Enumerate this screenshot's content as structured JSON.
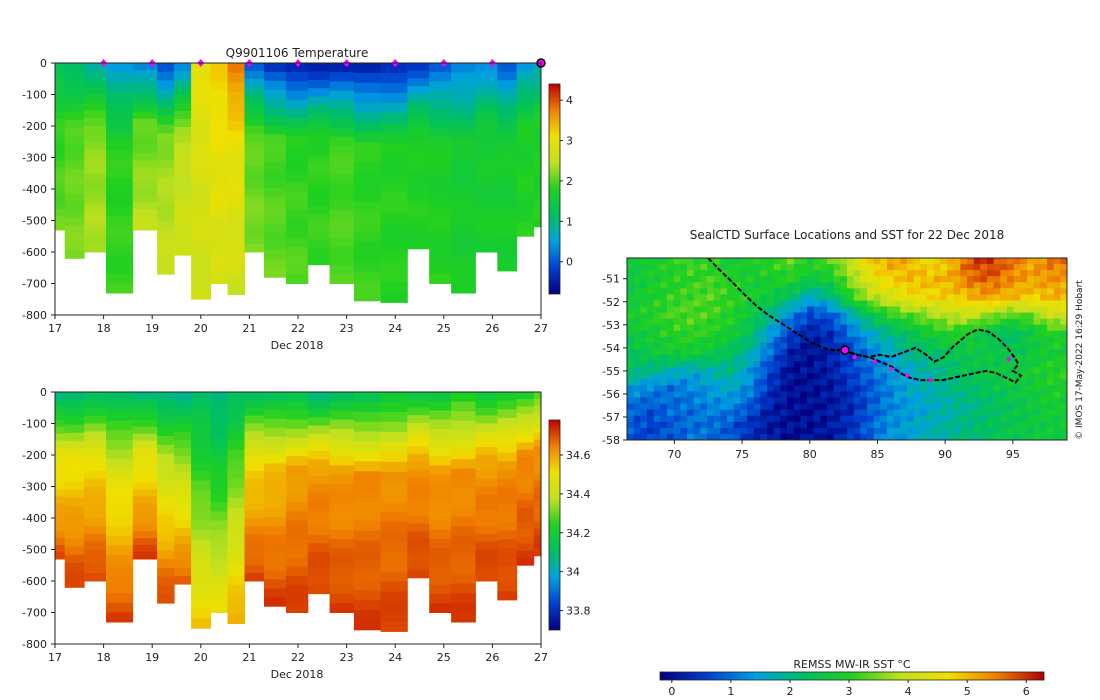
{
  "colors": {
    "temperature_cmap": [
      "#00007f",
      "#0040d0",
      "#00a0e0",
      "#00c060",
      "#20d020",
      "#c0e020",
      "#f0e000",
      "#f08000",
      "#c00000"
    ],
    "salinity_cmap": [
      "#00007f",
      "#0040d0",
      "#00a0e0",
      "#00c060",
      "#20d020",
      "#c0e020",
      "#f0e000",
      "#f08000",
      "#c00000"
    ],
    "sst_cmap": [
      "#00007f",
      "#0040d0",
      "#00a0e0",
      "#00c060",
      "#20d020",
      "#c0e020",
      "#f0e000",
      "#f08000",
      "#b00000"
    ],
    "marker": "#ff00ff",
    "track": "#000000",
    "profile_fill_temp": "#20c030",
    "profile_fill_sal_deep": "#b00000"
  },
  "chart_data": [
    {
      "id": "temperature-section",
      "type": "heatmap",
      "title": "Q9901106  Temperature",
      "xlabel": "Dec 2018",
      "ylabel": "",
      "x_ticks": [
        "17",
        "18",
        "19",
        "20",
        "21",
        "22",
        "23",
        "24",
        "25",
        "26",
        "27"
      ],
      "xlim": [
        17,
        27
      ],
      "y_ticks": [
        "0",
        "-100",
        "-200",
        "-300",
        "-400",
        "-500",
        "-600",
        "-700",
        "-800"
      ],
      "ylim": [
        -800,
        0
      ],
      "colorbar_ticks": [
        "0",
        "1",
        "2",
        "3",
        "4"
      ],
      "colorbar_range": [
        -0.8,
        4.4
      ],
      "surface_markers_x": [
        18,
        19,
        20,
        21,
        22,
        23,
        24,
        25,
        26
      ],
      "last_marker_x": 27,
      "profiles": [
        {
          "x": 17.0,
          "depth": 530,
          "surface": 1.2,
          "mid": 1.8,
          "deep": 2.1
        },
        {
          "x": 17.4,
          "depth": 620,
          "surface": 1.0,
          "mid": 2.0,
          "deep": 2.2
        },
        {
          "x": 17.8,
          "depth": 600,
          "surface": 0.8,
          "mid": 2.2,
          "deep": 2.4
        },
        {
          "x": 18.3,
          "depth": 730,
          "surface": 0.5,
          "mid": 1.8,
          "deep": 1.9
        },
        {
          "x": 18.9,
          "depth": 530,
          "surface": 0.2,
          "mid": 2.0,
          "deep": 2.5
        },
        {
          "x": 19.3,
          "depth": 670,
          "surface": -0.2,
          "mid": 2.2,
          "deep": 2.6
        },
        {
          "x": 19.6,
          "depth": 610,
          "surface": 0.3,
          "mid": 2.4,
          "deep": 2.7
        },
        {
          "x": 20.0,
          "depth": 750,
          "surface": 3.0,
          "mid": 2.8,
          "deep": 2.6
        },
        {
          "x": 20.4,
          "depth": 700,
          "surface": 3.2,
          "mid": 3.0,
          "deep": 2.7
        },
        {
          "x": 20.7,
          "depth": 735,
          "surface": 3.8,
          "mid": 3.0,
          "deep": 2.6
        },
        {
          "x": 21.1,
          "depth": 600,
          "surface": 0.0,
          "mid": 2.0,
          "deep": 2.2
        },
        {
          "x": 21.5,
          "depth": 680,
          "surface": -0.4,
          "mid": 1.9,
          "deep": 2.1
        },
        {
          "x": 22.0,
          "depth": 700,
          "surface": -0.6,
          "mid": 1.8,
          "deep": 2.0
        },
        {
          "x": 22.4,
          "depth": 640,
          "surface": -0.6,
          "mid": 1.8,
          "deep": 1.9
        },
        {
          "x": 22.9,
          "depth": 700,
          "surface": -0.5,
          "mid": 1.9,
          "deep": 2.0
        },
        {
          "x": 23.4,
          "depth": 755,
          "surface": -0.6,
          "mid": 1.8,
          "deep": 1.9
        },
        {
          "x": 24.0,
          "depth": 760,
          "surface": -0.5,
          "mid": 1.8,
          "deep": 1.8
        },
        {
          "x": 24.5,
          "depth": 590,
          "surface": -0.3,
          "mid": 1.7,
          "deep": 1.8
        },
        {
          "x": 24.9,
          "depth": 700,
          "surface": 0.0,
          "mid": 1.7,
          "deep": 1.8
        },
        {
          "x": 25.4,
          "depth": 730,
          "surface": 0.2,
          "mid": 1.6,
          "deep": 1.7
        },
        {
          "x": 25.9,
          "depth": 600,
          "surface": 0.3,
          "mid": 1.6,
          "deep": 1.7
        },
        {
          "x": 26.3,
          "depth": 660,
          "surface": 0.0,
          "mid": 1.6,
          "deep": 1.7
        },
        {
          "x": 26.7,
          "depth": 550,
          "surface": 0.4,
          "mid": 1.7,
          "deep": 1.8
        },
        {
          "x": 27.0,
          "depth": 520,
          "surface": 0.6,
          "mid": 1.7,
          "deep": 1.8
        }
      ]
    },
    {
      "id": "salinity-section",
      "type": "heatmap",
      "title": "",
      "xlabel": "Dec 2018",
      "ylabel": "",
      "x_ticks": [
        "17",
        "18",
        "19",
        "20",
        "21",
        "22",
        "23",
        "24",
        "25",
        "26",
        "27"
      ],
      "xlim": [
        17,
        27
      ],
      "y_ticks": [
        "0",
        "-100",
        "-200",
        "-300",
        "-400",
        "-500",
        "-600",
        "-700",
        "-800"
      ],
      "ylim": [
        -800,
        0
      ],
      "colorbar_ticks": [
        "33.8",
        "34",
        "34.2",
        "34.4",
        "34.6"
      ],
      "colorbar_range": [
        33.7,
        34.78
      ],
      "profiles": [
        {
          "x": 17.0,
          "depth": 530,
          "surface": 34.05,
          "mid": 34.45,
          "deep": 34.7
        },
        {
          "x": 17.4,
          "depth": 620,
          "surface": 34.05,
          "mid": 34.5,
          "deep": 34.72
        },
        {
          "x": 17.8,
          "depth": 600,
          "surface": 34.1,
          "mid": 34.5,
          "deep": 34.72
        },
        {
          "x": 18.3,
          "depth": 730,
          "surface": 34.1,
          "mid": 34.45,
          "deep": 34.72
        },
        {
          "x": 18.9,
          "depth": 530,
          "surface": 34.05,
          "mid": 34.45,
          "deep": 34.72
        },
        {
          "x": 19.3,
          "depth": 670,
          "surface": 34.05,
          "mid": 34.4,
          "deep": 34.72
        },
        {
          "x": 19.6,
          "depth": 610,
          "surface": 34.05,
          "mid": 34.35,
          "deep": 34.7
        },
        {
          "x": 20.0,
          "depth": 750,
          "surface": 34.1,
          "mid": 34.25,
          "deep": 34.55
        },
        {
          "x": 20.4,
          "depth": 700,
          "surface": 34.05,
          "mid": 34.2,
          "deep": 34.5
        },
        {
          "x": 20.7,
          "depth": 735,
          "surface": 34.1,
          "mid": 34.3,
          "deep": 34.6
        },
        {
          "x": 21.1,
          "depth": 600,
          "surface": 34.1,
          "mid": 34.5,
          "deep": 34.72
        },
        {
          "x": 21.5,
          "depth": 680,
          "surface": 34.1,
          "mid": 34.55,
          "deep": 34.72
        },
        {
          "x": 22.0,
          "depth": 700,
          "surface": 34.1,
          "mid": 34.6,
          "deep": 34.72
        },
        {
          "x": 22.4,
          "depth": 640,
          "surface": 34.05,
          "mid": 34.6,
          "deep": 34.72
        },
        {
          "x": 22.9,
          "depth": 700,
          "surface": 34.1,
          "mid": 34.6,
          "deep": 34.72
        },
        {
          "x": 23.4,
          "depth": 755,
          "surface": 34.1,
          "mid": 34.62,
          "deep": 34.72
        },
        {
          "x": 24.0,
          "depth": 760,
          "surface": 34.15,
          "mid": 34.62,
          "deep": 34.72
        },
        {
          "x": 24.5,
          "depth": 590,
          "surface": 34.15,
          "mid": 34.6,
          "deep": 34.72
        },
        {
          "x": 24.9,
          "depth": 700,
          "surface": 34.15,
          "mid": 34.6,
          "deep": 34.72
        },
        {
          "x": 25.4,
          "depth": 730,
          "surface": 34.2,
          "mid": 34.62,
          "deep": 34.72
        },
        {
          "x": 25.9,
          "depth": 600,
          "surface": 34.15,
          "mid": 34.6,
          "deep": 34.72
        },
        {
          "x": 26.3,
          "depth": 660,
          "surface": 34.2,
          "mid": 34.62,
          "deep": 34.72
        },
        {
          "x": 26.7,
          "depth": 550,
          "surface": 34.2,
          "mid": 34.62,
          "deep": 34.72
        },
        {
          "x": 27.0,
          "depth": 520,
          "surface": 34.25,
          "mid": 34.62,
          "deep": 34.72
        }
      ]
    },
    {
      "id": "sst-map",
      "type": "heatmap",
      "title": "SealCTD Surface Locations and SST for 22 Dec 2018",
      "xlabel": "",
      "ylabel": "",
      "x_ticks": [
        "70",
        "75",
        "80",
        "85",
        "90",
        "95"
      ],
      "xlim": [
        66.5,
        99
      ],
      "y_ticks": [
        "-51",
        "-52",
        "-53",
        "-54",
        "-55",
        "-56",
        "-57",
        "-58"
      ],
      "ylim": [
        -58,
        -50.1
      ],
      "colorbar_label": "REMSS MW-IR SST °C",
      "colorbar_ticks": [
        "0",
        "1",
        "2",
        "3",
        "4",
        "5",
        "6"
      ],
      "colorbar_range": [
        -0.2,
        6.3
      ],
      "credit": "© IMOS 17-May-2022 16:29 Hobart",
      "track": [
        [
          72.5,
          -50.1
        ],
        [
          73.3,
          -50.6
        ],
        [
          74.2,
          -51.1
        ],
        [
          75.2,
          -51.7
        ],
        [
          76.1,
          -52.2
        ],
        [
          77.0,
          -52.6
        ],
        [
          77.8,
          -52.9
        ],
        [
          78.6,
          -53.2
        ],
        [
          79.4,
          -53.5
        ],
        [
          80.2,
          -53.8
        ],
        [
          81.0,
          -54.0
        ],
        [
          81.8,
          -54.1
        ],
        [
          82.6,
          -54.1
        ],
        [
          83.5,
          -54.3
        ],
        [
          84.3,
          -54.4
        ],
        [
          85.2,
          -54.3
        ],
        [
          86.0,
          -54.4
        ],
        [
          86.9,
          -54.2
        ],
        [
          87.8,
          -54.0
        ],
        [
          88.6,
          -54.3
        ],
        [
          89.2,
          -54.6
        ],
        [
          89.9,
          -54.4
        ],
        [
          90.5,
          -54.0
        ],
        [
          91.1,
          -53.7
        ],
        [
          91.7,
          -53.4
        ],
        [
          92.4,
          -53.2
        ],
        [
          93.2,
          -53.3
        ],
        [
          93.9,
          -53.6
        ],
        [
          94.6,
          -54.0
        ],
        [
          95.1,
          -54.4
        ],
        [
          95.4,
          -54.7
        ],
        [
          95.0,
          -55.0
        ],
        [
          95.6,
          -55.2
        ],
        [
          95.2,
          -55.5
        ],
        [
          94.5,
          -55.3
        ],
        [
          93.8,
          -55.1
        ],
        [
          93.0,
          -55.0
        ],
        [
          92.2,
          -55.1
        ],
        [
          91.4,
          -55.2
        ],
        [
          90.6,
          -55.3
        ],
        [
          89.8,
          -55.4
        ],
        [
          89.0,
          -55.4
        ],
        [
          88.2,
          -55.4
        ],
        [
          87.4,
          -55.3
        ],
        [
          86.7,
          -55.1
        ],
        [
          86.0,
          -54.8
        ],
        [
          85.2,
          -54.6
        ],
        [
          84.4,
          -54.4
        ],
        [
          83.6,
          -54.3
        ],
        [
          82.8,
          -54.2
        ]
      ],
      "track_markers": [
        [
          83.3,
          -54.4
        ],
        [
          84.8,
          -54.6
        ],
        [
          86.0,
          -54.9
        ],
        [
          87.2,
          -55.2
        ],
        [
          88.9,
          -55.4
        ],
        [
          94.7,
          -54.5
        ]
      ],
      "current_position": [
        82.6,
        -54.1
      ],
      "sst_field": [
        [
          2.6,
          2.9,
          3.0,
          3.2,
          3.0,
          2.8,
          2.9,
          3.1,
          3.3,
          3.0,
          3.3,
          4.0,
          4.8,
          5.2,
          5.0,
          4.6,
          5.0,
          5.8,
          6.0,
          5.6,
          5.2,
          5.5
        ],
        [
          2.6,
          2.8,
          3.0,
          3.1,
          3.2,
          3.0,
          2.8,
          2.9,
          3.0,
          2.6,
          2.8,
          3.6,
          4.4,
          4.8,
          5.0,
          5.0,
          5.1,
          5.6,
          5.7,
          5.4,
          5.2,
          5.3
        ],
        [
          2.7,
          2.9,
          3.1,
          3.2,
          3.3,
          3.1,
          2.9,
          2.6,
          2.2,
          1.6,
          2.0,
          3.0,
          3.8,
          4.2,
          4.6,
          4.7,
          4.8,
          5.0,
          5.2,
          5.0,
          4.8,
          5.0
        ],
        [
          2.8,
          3.0,
          3.2,
          3.3,
          3.2,
          3.0,
          2.6,
          2.0,
          1.2,
          0.6,
          0.8,
          1.6,
          2.4,
          3.0,
          3.3,
          3.6,
          3.9,
          4.0,
          3.6,
          3.2,
          3.4,
          4.0
        ],
        [
          2.6,
          2.8,
          3.0,
          3.1,
          3.0,
          2.8,
          2.3,
          1.4,
          0.6,
          0.2,
          0.4,
          1.0,
          1.6,
          2.0,
          2.4,
          2.8,
          3.0,
          2.8,
          2.4,
          2.2,
          2.6,
          3.0
        ],
        [
          2.4,
          2.6,
          2.8,
          2.8,
          2.6,
          2.3,
          1.8,
          1.0,
          0.2,
          0.0,
          0.2,
          0.6,
          1.2,
          1.6,
          2.0,
          2.2,
          2.4,
          2.6,
          2.6,
          2.4,
          2.6,
          2.8
        ],
        [
          2.2,
          2.0,
          1.8,
          1.6,
          1.8,
          2.0,
          1.4,
          0.6,
          0.0,
          0.0,
          0.2,
          0.6,
          1.0,
          1.4,
          1.6,
          1.9,
          2.2,
          2.4,
          2.6,
          2.6,
          2.8,
          3.0
        ],
        [
          1.4,
          1.2,
          1.0,
          1.2,
          1.4,
          1.6,
          1.2,
          0.4,
          0.0,
          0.0,
          0.1,
          0.4,
          0.8,
          1.2,
          1.6,
          1.8,
          2.0,
          2.2,
          2.4,
          2.6,
          2.7,
          2.9
        ],
        [
          1.0,
          0.8,
          1.0,
          1.0,
          1.2,
          1.2,
          0.8,
          0.2,
          0.0,
          0.0,
          0.1,
          0.3,
          0.8,
          1.2,
          1.4,
          1.6,
          1.8,
          2.0,
          2.2,
          2.4,
          2.6,
          2.8
        ],
        [
          0.8,
          0.6,
          0.8,
          1.0,
          1.0,
          0.8,
          0.4,
          0.1,
          0.0,
          0.0,
          0.1,
          0.4,
          0.9,
          1.3,
          1.5,
          1.7,
          1.9,
          2.1,
          2.3,
          2.5,
          2.6,
          2.7
        ]
      ]
    }
  ]
}
